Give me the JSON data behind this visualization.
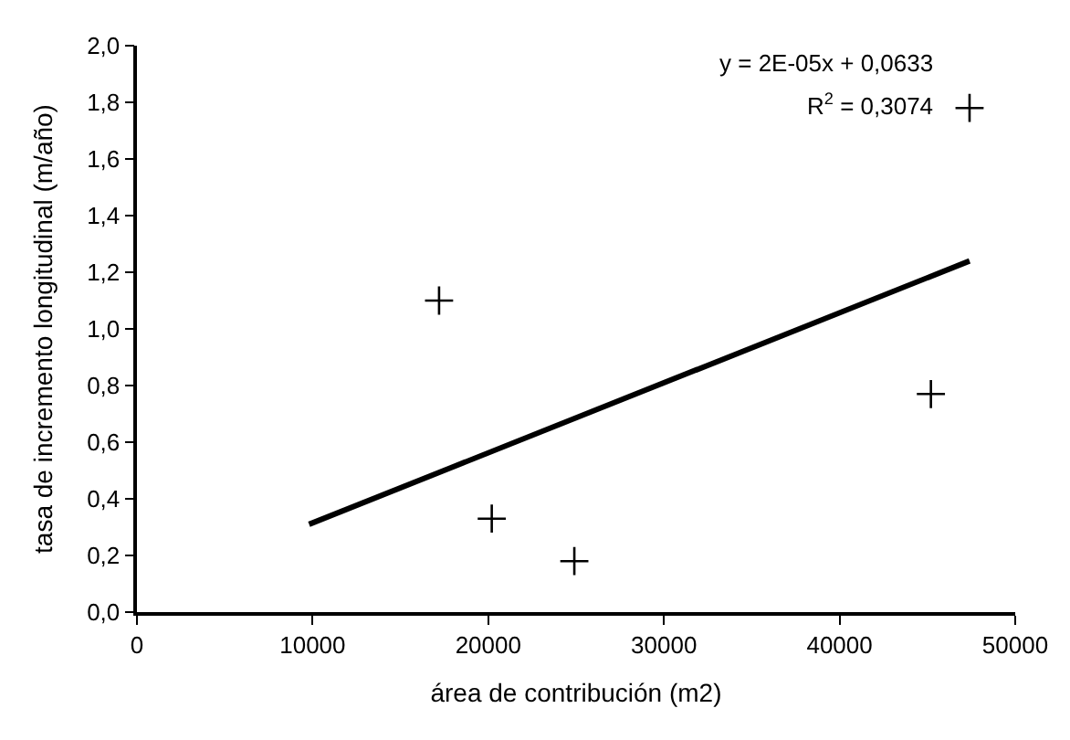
{
  "chart_data": {
    "type": "scatter",
    "xlabel": "área de contribución (m2)",
    "ylabel": "tasa de incremento longitudinal (m/año)",
    "x": [
      17200,
      20200,
      24900,
      45200,
      47400
    ],
    "series": [
      {
        "color": "#000000",
        "values": [
          1.1,
          0.33,
          0.18,
          0.77,
          1.78
        ],
        "marker": "cross"
      },
      {
        "type": "line",
        "color": "#000000",
        "x": [
          9800,
          47400
        ],
        "values": [
          0.31,
          1.24
        ],
        "marker": "none"
      }
    ],
    "annotations": [
      "y = 2E-05x + 0,0633",
      "R$^{2}$ = 0,3074"
    ],
    "xlim": [
      0,
      50000
    ],
    "xticks": [
      0,
      10000,
      20000,
      30000,
      40000,
      50000
    ],
    "ylim": [
      0,
      2.0
    ],
    "yticks": [
      {
        "value": 0,
        "label": "0,0"
      },
      {
        "value": 0.2,
        "label": "0,2"
      },
      {
        "value": 0.4,
        "label": "0,4"
      },
      {
        "value": 0.6,
        "label": "0,6"
      },
      {
        "value": 0.8,
        "label": "0,8"
      },
      {
        "value": 1.0,
        "label": "1,0"
      },
      {
        "value": 1.2,
        "label": "1,2"
      },
      {
        "value": 1.4,
        "label": "1,4"
      },
      {
        "value": 1.6,
        "label": "1,6"
      },
      {
        "value": 1.8,
        "label": "1,8"
      },
      {
        "value": 2.0,
        "label": "2,0"
      }
    ]
  }
}
